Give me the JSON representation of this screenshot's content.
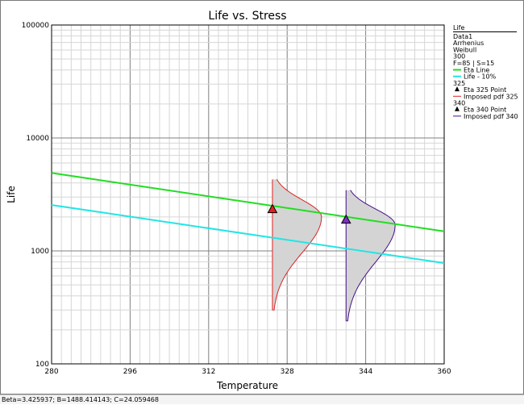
{
  "chart_data": {
    "type": "scatter",
    "title": "Life vs. Stress",
    "xlabel": "Temperature",
    "ylabel": "Life",
    "xlim": [
      280,
      360
    ],
    "ylim": [
      100,
      100000
    ],
    "yscale": "log",
    "x_ticks": [
      "280",
      "296",
      "312",
      "328",
      "344",
      "360"
    ],
    "y_ticks": [
      "100",
      "1000",
      "10000",
      "100000"
    ],
    "grid": true,
    "legend_position": "right",
    "legend": {
      "header": "Life",
      "info": [
        "Data1",
        "Arrhenius",
        "Weibull",
        "300",
        "F=85 | S=15"
      ],
      "entries": [
        {
          "key": "eta_line",
          "label": "Eta Line",
          "color": "#22dd22",
          "marker": "line"
        },
        {
          "key": "life_10",
          "label": "Life - 10%",
          "color": "#22e5e5",
          "marker": "line"
        },
        {
          "key": "group_325",
          "label": "325",
          "marker": "none"
        },
        {
          "key": "eta_325",
          "label": "Eta 325 Point",
          "color": "#000000",
          "marker": "triangle"
        },
        {
          "key": "pdf_325",
          "label": "Imposed pdf 325",
          "color": "#dd2222",
          "marker": "line"
        },
        {
          "key": "group_340",
          "label": "340",
          "marker": "none"
        },
        {
          "key": "eta_340",
          "label": "Eta 340 Point",
          "color": "#000000",
          "marker": "triangle"
        },
        {
          "key": "pdf_340",
          "label": "Imposed pdf 340",
          "color": "#441188",
          "marker": "line"
        }
      ]
    },
    "series": [
      {
        "name": "Eta Line",
        "color": "#22dd22",
        "x": [
          280,
          360
        ],
        "y": [
          4900,
          1490
        ]
      },
      {
        "name": "Life - 10%",
        "color": "#22e5e5",
        "x": [
          280,
          360
        ],
        "y": [
          2550,
          780
        ]
      },
      {
        "name": "Eta 325 Point",
        "color": "#dd2222",
        "x": [
          325
        ],
        "y": [
          2330
        ]
      },
      {
        "name": "Eta 340 Point",
        "color": "#7b2fbe",
        "x": [
          340
        ],
        "y": [
          1880
        ]
      }
    ],
    "pdfs": [
      {
        "name": "Imposed pdf 325",
        "stress": 325,
        "color": "#dd2222",
        "life_range": [
          300,
          4300
        ],
        "mode_life": 2000,
        "peak_temperature": 335
      },
      {
        "name": "Imposed pdf 340",
        "stress": 340,
        "color": "#441188",
        "life_range": [
          240,
          3450
        ],
        "mode_life": 1700,
        "peak_temperature": 350
      }
    ]
  },
  "status_text": "Beta=3.425937; B=1488.414143; C=24.059468"
}
